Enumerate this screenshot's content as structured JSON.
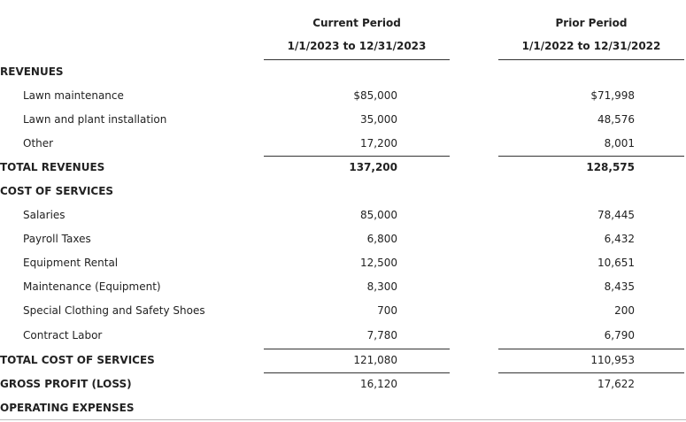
{
  "header": {
    "current": {
      "title": "Current Period",
      "range": "1/1/2023 to 12/31/2023"
    },
    "prior": {
      "title": "Prior Period",
      "range": "1/1/2022 to 12/31/2022"
    }
  },
  "table": {
    "rows": [
      [
        "REVENUES"
      ],
      [
        "Lawn maintenance",
        "$85,000",
        "$71,998"
      ],
      [
        "Lawn and plant installation",
        "35,000",
        "48,576"
      ],
      [
        "Other",
        "17,200",
        "8,001"
      ],
      [
        "TOTAL REVENUES",
        "137,200",
        "128,575"
      ],
      [
        "COST OF SERVICES"
      ],
      [
        "Salaries",
        "85,000",
        "78,445"
      ],
      [
        "Payroll Taxes",
        "6,800",
        "6,432"
      ],
      [
        "Equipment Rental",
        "12,500",
        "10,651"
      ],
      [
        "Maintenance (Equipment)",
        "8,300",
        "8,435"
      ],
      [
        "Special Clothing and Safety Shoes",
        "700",
        "200"
      ],
      [
        "Contract Labor",
        "7,780",
        "6,790"
      ],
      [
        "TOTAL COST OF SERVICES",
        "121,080",
        "110,953"
      ],
      [
        "GROSS PROFIT (LOSS)",
        "16,120",
        "17,622"
      ],
      [
        "OPERATING EXPENSES"
      ]
    ]
  }
}
